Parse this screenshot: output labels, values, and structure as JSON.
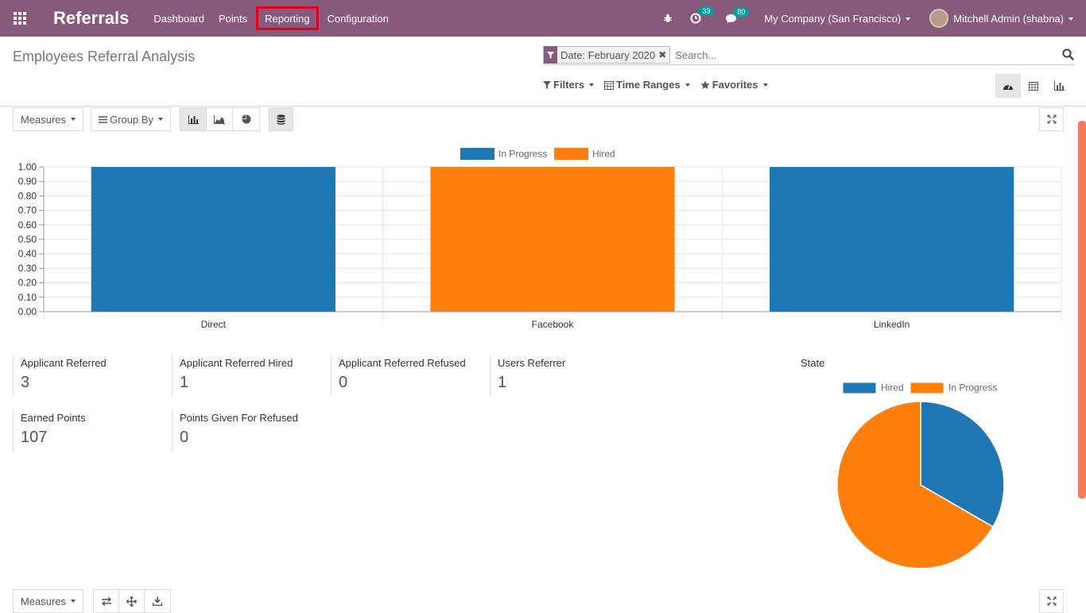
{
  "navbar": {
    "app_title": "Referrals",
    "menu": [
      {
        "label": "Dashboard"
      },
      {
        "label": "Points"
      },
      {
        "label": "Reporting"
      },
      {
        "label": "Configuration"
      }
    ],
    "activity_count": "33",
    "messages_count": "80",
    "company": "My Company (San Francisco)",
    "user": "Mitchell Admin (shabna)"
  },
  "control_panel": {
    "title": "Employees Referral Analysis",
    "facet": "Date: February 2020",
    "search_placeholder": "Search...",
    "filters_label": "Filters",
    "time_ranges_label": "Time Ranges",
    "favorites_label": "Favorites"
  },
  "toolbar": {
    "measures_label": "Measures",
    "group_by_label": "Group By",
    "bottom_measures_label": "Measures"
  },
  "colors": {
    "brand": "#875a7b",
    "in_progress": "#1f77b4",
    "hired": "#ff7f0e"
  },
  "chart_data": [
    {
      "type": "bar",
      "categories": [
        "Direct",
        "Facebook",
        "LinkedIn"
      ],
      "series": [
        {
          "name": "In Progress",
          "values": [
            1,
            0,
            1
          ]
        },
        {
          "name": "Hired",
          "values": [
            0,
            1,
            0
          ]
        }
      ],
      "ylim": [
        0,
        1
      ],
      "yticks": [
        "1.00",
        "0.90",
        "0.80",
        "0.70",
        "0.60",
        "0.50",
        "0.40",
        "0.30",
        "0.20",
        "0.10",
        "0.00"
      ],
      "legend": "top-center",
      "grid": true
    },
    {
      "type": "pie",
      "title": "State",
      "labels": [
        "Hired",
        "In Progress"
      ],
      "values": [
        1,
        2
      ],
      "legend": "top"
    }
  ],
  "kpis": [
    {
      "label": "Applicant Referred",
      "value": "3"
    },
    {
      "label": "Applicant Referred Hired",
      "value": "1"
    },
    {
      "label": "Applicant Referred Refused",
      "value": "0"
    },
    {
      "label": "Users Referrer",
      "value": "1"
    },
    {
      "label": "Earned Points",
      "value": "107"
    },
    {
      "label": "Points Given For Refused",
      "value": "0"
    }
  ]
}
